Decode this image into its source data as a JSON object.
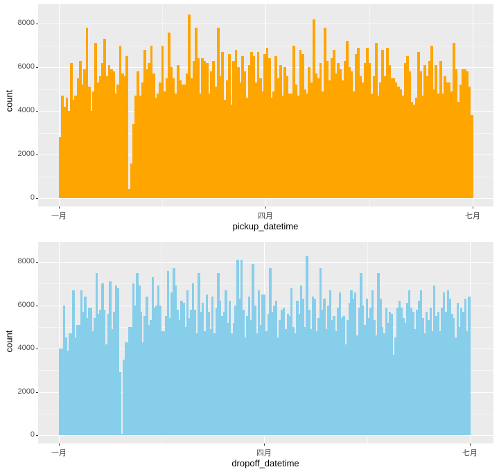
{
  "chart_data": [
    {
      "type": "bar",
      "title": "",
      "xlabel": "pickup_datetime",
      "ylabel": "count",
      "color": "#FFA500",
      "x_tick_labels": [
        "一月",
        "四月",
        "七月"
      ],
      "y_tick_labels": [
        "0",
        "2000",
        "4000",
        "6000",
        "8000"
      ],
      "ylim": [
        0,
        8600
      ],
      "grid": true,
      "binning": "daily, 2016-01-01 to 2016-06-30 (approx.)",
      "values": [
        2800,
        4700,
        4200,
        4600,
        4000,
        6200,
        4500,
        4700,
        5500,
        6300,
        5200,
        5900,
        7800,
        5100,
        4000,
        4900,
        7100,
        5300,
        5600,
        6200,
        7300,
        5600,
        6100,
        5900,
        5800,
        4800,
        5200,
        7000,
        5700,
        5600,
        6500,
        400,
        1600,
        3400,
        4700,
        5800,
        4700,
        5300,
        6800,
        5900,
        6200,
        7000,
        5700,
        4600,
        4800,
        5300,
        7000,
        4900,
        5500,
        7600,
        6000,
        5500,
        4800,
        6100,
        5400,
        5200,
        5200,
        5700,
        8400,
        5500,
        6300,
        7800,
        6400,
        4800,
        6400,
        6300,
        6200,
        4800,
        5800,
        6300,
        5100,
        7800,
        5600,
        6700,
        4500,
        5400,
        6600,
        4300,
        6300,
        6800,
        6000,
        5300,
        6500,
        5800,
        4600,
        6100,
        6700,
        6500,
        5300,
        6700,
        5500,
        4900,
        6600,
        6900,
        6400,
        4600,
        4900,
        6500,
        5500,
        6100,
        4700,
        6000,
        5600,
        4800,
        4800,
        7000,
        5200,
        4700,
        6800,
        6600,
        5000,
        4800,
        6000,
        5300,
        8200,
        5700,
        5500,
        6200,
        4900,
        7800,
        6300,
        5400,
        6400,
        6800,
        5700,
        6200,
        5900,
        5400,
        6300,
        7200,
        6000,
        5800,
        4900,
        6600,
        6900,
        5600,
        5300,
        6200,
        6900,
        6200,
        4800,
        5600,
        7100,
        4700,
        5300,
        6800,
        5600,
        6900,
        6100,
        5500,
        5500,
        5300,
        5100,
        5000,
        4700,
        6200,
        6500,
        5800,
        4400,
        4300,
        4600,
        6700,
        5800,
        4700,
        6100,
        5600,
        6300,
        7000,
        5000,
        6100,
        4800,
        6300,
        4800,
        5600,
        5300,
        5300,
        4900,
        7100,
        5900,
        4400,
        5200,
        5900,
        5900,
        5800,
        5100,
        3800
      ]
    },
    {
      "type": "bar",
      "title": "",
      "xlabel": "dropoff_datetime",
      "ylabel": "count",
      "color": "#87CEEB",
      "x_tick_labels": [
        "一月",
        "四月",
        "七月"
      ],
      "y_tick_labels": [
        "0",
        "2000",
        "4000",
        "6000",
        "8000"
      ],
      "ylim": [
        0,
        8600
      ],
      "grid": true,
      "binning": "daily, 2016-01-01 to 2016-07-01 (approx.)",
      "values": [
        4000,
        4000,
        6000,
        4500,
        3900,
        4700,
        4700,
        6700,
        4500,
        5100,
        5100,
        6700,
        5700,
        6400,
        5400,
        5900,
        5900,
        4800,
        5400,
        7500,
        5600,
        5800,
        7000,
        5800,
        4200,
        5600,
        7100,
        4900,
        5700,
        6900,
        6800,
        2900,
        50,
        3500,
        4300,
        4300,
        5000,
        5000,
        7000,
        6000,
        7500,
        6900,
        5700,
        4300,
        5500,
        6400,
        5100,
        5300,
        7300,
        5900,
        6000,
        6900,
        6000,
        4800,
        4800,
        5500,
        7600,
        5400,
        6600,
        7700,
        6900,
        5800,
        5300,
        6200,
        6100,
        5000,
        6700,
        5400,
        5800,
        7000,
        5800,
        4700,
        7500,
        5700,
        6100,
        4800,
        6500,
        5700,
        4900,
        6400,
        4700,
        5900,
        7500,
        6200,
        5500,
        5700,
        6700,
        5200,
        6200,
        4700,
        5200,
        6000,
        8100,
        6300,
        8100,
        5800,
        4500,
        5500,
        6400,
        5300,
        7900,
        6000,
        4700,
        6700,
        5100,
        6500,
        6500,
        4800,
        5600,
        7700,
        5700,
        6000,
        6200,
        4500,
        5300,
        5800,
        5900,
        4900,
        5600,
        5500,
        6800,
        5000,
        4700,
        6200,
        5600,
        6900,
        6300,
        5000,
        8300,
        5800,
        4900,
        6400,
        6300,
        4800,
        5400,
        7700,
        5800,
        6300,
        4900,
        6000,
        6700,
        5300,
        5500,
        4800,
        5900,
        6600,
        5400,
        5500,
        4200,
        5300,
        6100,
        6700,
        6300,
        6600,
        4600,
        5900,
        7500,
        6000,
        5100,
        6300,
        5400,
        5900,
        6700,
        5300,
        4600,
        7500,
        6300,
        5000,
        4700,
        5900,
        5200,
        5700,
        5600,
        3700,
        4500,
        5900,
        6200,
        5900,
        5400,
        5200,
        6100,
        6700,
        5900,
        5700,
        4900,
        5800,
        6200,
        6700,
        5400,
        4700,
        5700,
        5300,
        5900,
        4800,
        6900,
        5500,
        5700,
        4800,
        5900,
        6600,
        5700,
        6700,
        6300,
        5600,
        5400,
        4500,
        6100,
        5000,
        5900,
        5700,
        6300,
        4800,
        6400
      ]
    }
  ],
  "panels": [
    {
      "xlabel": "pickup_datetime",
      "ylabel": "count",
      "x_ticks": [
        "一月",
        "四月",
        "七月"
      ],
      "y_ticks": [
        "0",
        "2000",
        "4000",
        "6000",
        "8000"
      ]
    },
    {
      "xlabel": "dropoff_datetime",
      "ylabel": "count",
      "x_ticks": [
        "一月",
        "四月",
        "七月"
      ],
      "y_ticks": [
        "0",
        "2000",
        "4000",
        "6000",
        "8000"
      ]
    }
  ]
}
